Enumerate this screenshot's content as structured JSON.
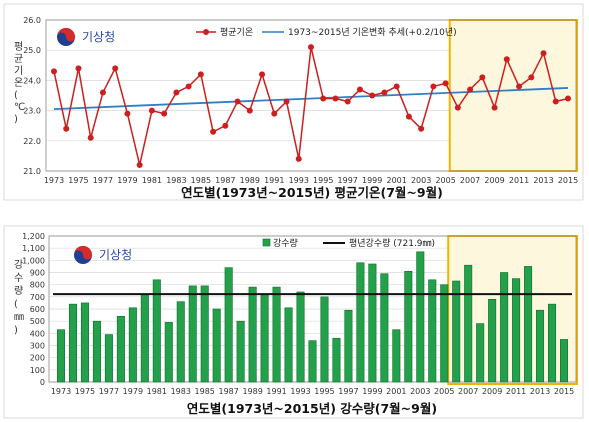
{
  "logo_text": "기상청",
  "chart_data": [
    {
      "type": "line",
      "ylabel": "평균기온(℃)",
      "caption": "연도별(1973년~2015년)  평균기온(7월~9월)",
      "ylim": [
        21.0,
        26.0
      ],
      "y_ticks": [
        "21.0",
        "22.0",
        "23.0",
        "24.0",
        "25.0",
        "26.0"
      ],
      "x_ticks": [
        "1973",
        "1975",
        "1977",
        "1979",
        "1981",
        "1983",
        "1985",
        "1987",
        "1989",
        "1991",
        "1993",
        "1995",
        "1997",
        "1999",
        "2001",
        "2003",
        "2005",
        "2007",
        "2009",
        "2011",
        "2013",
        "2015"
      ],
      "grid": "horizontal",
      "legend": "top",
      "highlight_range": [
        2006,
        2015
      ],
      "series": [
        {
          "name": "평균기온",
          "color": "#cc1f1f",
          "x": [
            1973,
            1974,
            1975,
            1976,
            1977,
            1978,
            1979,
            1980,
            1981,
            1982,
            1983,
            1984,
            1985,
            1986,
            1987,
            1988,
            1989,
            1990,
            1991,
            1992,
            1993,
            1994,
            1995,
            1996,
            1997,
            1998,
            1999,
            2000,
            2001,
            2002,
            2003,
            2004,
            2005,
            2006,
            2007,
            2008,
            2009,
            2010,
            2011,
            2012,
            2013,
            2014,
            2015
          ],
          "values": [
            24.3,
            22.4,
            24.4,
            22.1,
            23.6,
            24.4,
            22.9,
            21.2,
            23.0,
            22.9,
            23.6,
            23.8,
            24.2,
            22.3,
            22.5,
            23.3,
            23.0,
            24.2,
            22.9,
            23.3,
            21.4,
            25.1,
            23.4,
            23.4,
            23.3,
            23.7,
            23.5,
            23.6,
            23.8,
            22.8,
            22.4,
            23.8,
            23.9,
            23.1,
            23.7,
            24.1,
            23.1,
            24.7,
            23.8,
            24.1,
            24.9,
            23.3,
            23.4
          ]
        },
        {
          "name": "1973~2015년 기온변화 추세(+0.2/10년)",
          "color": "#2e7fc4",
          "type": "trend",
          "x": [
            1973,
            2015
          ],
          "values": [
            23.05,
            23.75
          ]
        }
      ]
    },
    {
      "type": "bar",
      "ylabel": "강수량(㎜)",
      "caption": "연도별(1973년~2015년)  강수량(7월~9월)",
      "ylim": [
        0,
        1200
      ],
      "y_ticks": [
        "0",
        "100",
        "200",
        "300",
        "400",
        "500",
        "600",
        "700",
        "800",
        "900",
        "1,000",
        "1,100",
        "1,200"
      ],
      "x_ticks": [
        "1973",
        "1975",
        "1977",
        "1979",
        "1981",
        "1983",
        "1985",
        "1987",
        "1989",
        "1991",
        "1993",
        "1995",
        "1997",
        "1999",
        "2001",
        "2003",
        "2005",
        "2007",
        "2009",
        "2011",
        "2013",
        "2015"
      ],
      "grid": "horizontal",
      "legend": "top",
      "highlight_range": [
        2006,
        2015
      ],
      "series": [
        {
          "name": "강수량",
          "color": "#22a04a",
          "x": [
            1973,
            1974,
            1975,
            1976,
            1977,
            1978,
            1979,
            1980,
            1981,
            1982,
            1983,
            1984,
            1985,
            1986,
            1987,
            1988,
            1989,
            1990,
            1991,
            1992,
            1993,
            1994,
            1995,
            1996,
            1997,
            1998,
            1999,
            2000,
            2001,
            2002,
            2003,
            2004,
            2005,
            2006,
            2007,
            2008,
            2009,
            2010,
            2011,
            2012,
            2013,
            2014,
            2015
          ],
          "values": [
            430,
            640,
            650,
            500,
            390,
            540,
            610,
            720,
            840,
            490,
            660,
            790,
            790,
            600,
            940,
            500,
            780,
            720,
            780,
            610,
            740,
            340,
            700,
            360,
            590,
            980,
            970,
            890,
            430,
            910,
            1070,
            840,
            800,
            830,
            960,
            480,
            680,
            900,
            850,
            950,
            590,
            640,
            350
          ]
        },
        {
          "name": "평년강수량 (721.9㎜)",
          "color": "#111111",
          "type": "reference",
          "value": 721.9
        }
      ]
    }
  ]
}
